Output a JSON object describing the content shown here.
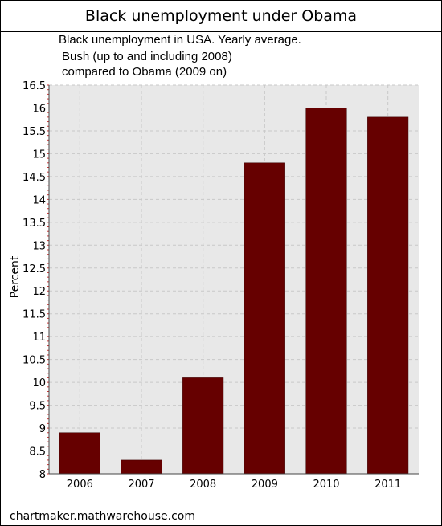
{
  "page": {
    "title": "Black unemployment under Obama",
    "footer": "chartmaker.mathwarehouse.com"
  },
  "colors": {
    "bar": "#660000",
    "plot_background": "#e8e8e8",
    "grid": "#c8c8c8"
  },
  "chart_data": {
    "type": "bar",
    "title": "Black unemployment in USA. Yearly average.",
    "subtitle_lines": [
      "Bush (up to and including 2008)",
      "compared to Obama (2009 on)"
    ],
    "xlabel": "",
    "ylabel": "Percent",
    "categories": [
      "2006",
      "2007",
      "2008",
      "2009",
      "2010",
      "2011"
    ],
    "values": [
      8.9,
      8.3,
      10.1,
      14.8,
      16.0,
      15.8
    ],
    "ylim": [
      8,
      16.5
    ],
    "yticks": [
      "8",
      "8.5",
      "9",
      "9.5",
      "10",
      "10.5",
      "11",
      "11.5",
      "12",
      "12.5",
      "13",
      "13.5",
      "14",
      "14.5",
      "15",
      "15.5",
      "16",
      "16.5"
    ],
    "grid": true,
    "legend": "none"
  }
}
